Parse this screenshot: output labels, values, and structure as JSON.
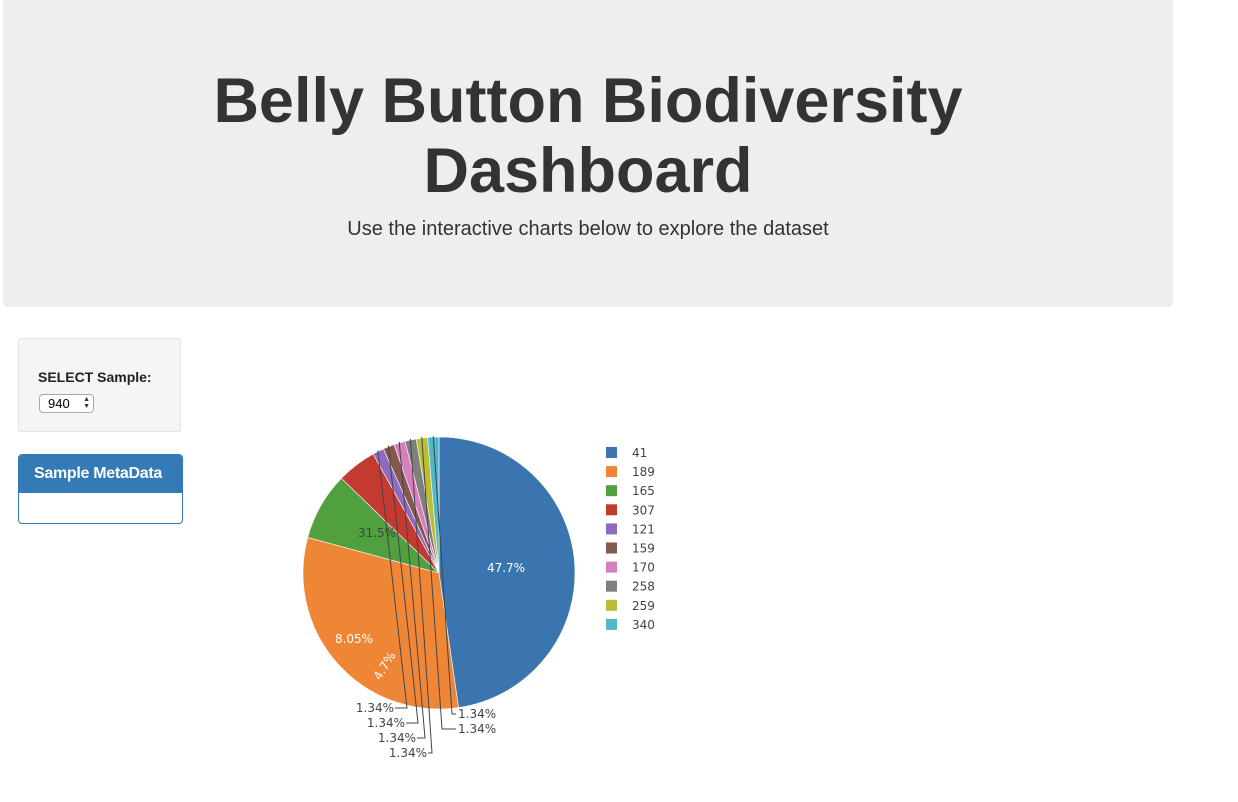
{
  "header": {
    "title": "Belly Button Biodiversity Dashboard",
    "subtitle": "Use the interactive charts below to explore the dataset"
  },
  "selector": {
    "label": "SELECT Sample:",
    "selected_value": "940"
  },
  "metadata_panel": {
    "heading": "Sample MetaData"
  },
  "chart_data": {
    "type": "pie",
    "labels": [
      "41",
      "189",
      "165",
      "307",
      "121",
      "159",
      "170",
      "258",
      "259",
      "340"
    ],
    "values": [
      47.7,
      31.5,
      8.05,
      4.7,
      1.34,
      1.34,
      1.34,
      1.34,
      1.34,
      1.34
    ],
    "text_labels": [
      "47.7%",
      "31.5%",
      "8.05%",
      "4.7%",
      "1.34%",
      "1.34%",
      "1.34%",
      "1.34%",
      "1.34%",
      "1.34%"
    ],
    "colors": [
      "#3a75b0",
      "#ef8636",
      "#50a03f",
      "#c43a31",
      "#8e6bbf",
      "#84584e",
      "#d57fbe",
      "#7f7f7f",
      "#bcbd36",
      "#52b7c9"
    ],
    "legend_position": "right"
  }
}
